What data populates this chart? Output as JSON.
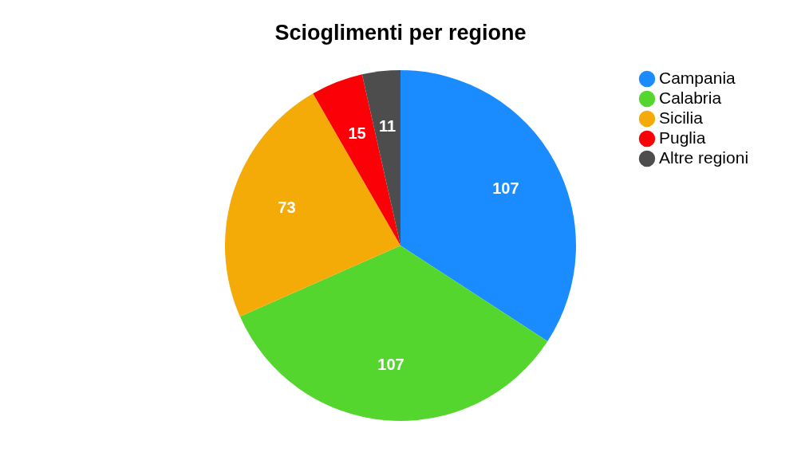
{
  "chart_data": {
    "type": "pie",
    "title": "Scioglimenti per regione",
    "categories": [
      "Campania",
      "Calabria",
      "Sicilia",
      "Puglia",
      "Altre regioni"
    ],
    "values": [
      107,
      107,
      73,
      15,
      11
    ],
    "colors": [
      "#1a8cff",
      "#55d62f",
      "#f5ab07",
      "#fb0007",
      "#4d4d4d"
    ],
    "data_labels": true,
    "legend": "top right"
  }
}
